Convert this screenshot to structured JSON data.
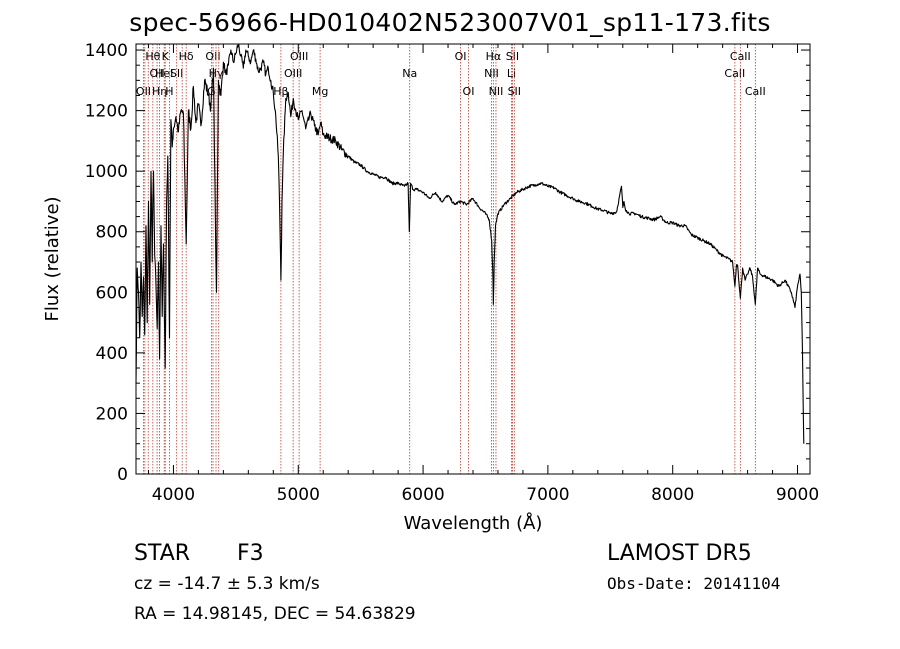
{
  "chart_data": {
    "type": "line",
    "title": "spec-56966-HD010402N523007V01_sp11-173.fits",
    "xlabel": "Wavelength (Å)",
    "ylabel": "Flux (relative)",
    "xlim": [
      3700,
      9100
    ],
    "ylim": [
      0,
      1420
    ],
    "xticks": [
      4000,
      5000,
      6000,
      7000,
      8000,
      9000
    ],
    "yticks": [
      0,
      200,
      400,
      600,
      800,
      1000,
      1200,
      1400
    ],
    "grid": false,
    "series": [
      {
        "color": "#000000",
        "x": [
          3700,
          3710,
          3720,
          3730,
          3740,
          3750,
          3760,
          3770,
          3780,
          3790,
          3800,
          3810,
          3820,
          3830,
          3835,
          3840,
          3850,
          3860,
          3870,
          3880,
          3889,
          3900,
          3910,
          3920,
          3934,
          3945,
          3955,
          3968,
          3980,
          3990,
          4000,
          4020,
          4040,
          4060,
          4080,
          4102,
          4120,
          4140,
          4160,
          4180,
          4200,
          4220,
          4250,
          4280,
          4300,
          4320,
          4340,
          4345,
          4360,
          4380,
          4400,
          4420,
          4440,
          4460,
          4480,
          4500,
          4520,
          4540,
          4560,
          4580,
          4600,
          4620,
          4640,
          4660,
          4680,
          4700,
          4720,
          4740,
          4760,
          4780,
          4800,
          4820,
          4840,
          4850,
          4861,
          4870,
          4880,
          4900,
          4920,
          4940,
          4960,
          4980,
          5000,
          5030,
          5060,
          5100,
          5130,
          5160,
          5180,
          5200,
          5250,
          5300,
          5350,
          5400,
          5450,
          5500,
          5550,
          5600,
          5650,
          5700,
          5750,
          5800,
          5850,
          5880,
          5890,
          5900,
          5920,
          5950,
          6000,
          6050,
          6100,
          6150,
          6200,
          6250,
          6300,
          6350,
          6400,
          6450,
          6500,
          6530,
          6550,
          6560,
          6563,
          6570,
          6580,
          6600,
          6650,
          6700,
          6750,
          6800,
          6850,
          6900,
          6950,
          7000,
          7050,
          7100,
          7150,
          7200,
          7250,
          7300,
          7350,
          7400,
          7450,
          7500,
          7550,
          7590,
          7600,
          7610,
          7620,
          7630,
          7650,
          7700,
          7750,
          7800,
          7850,
          7900,
          7950,
          8000,
          8050,
          8100,
          8150,
          8200,
          8250,
          8300,
          8350,
          8400,
          8450,
          8480,
          8498,
          8510,
          8520,
          8542,
          8560,
          8580,
          8600,
          8620,
          8640,
          8662,
          8680,
          8700,
          8750,
          8800,
          8850,
          8900,
          8950,
          8980,
          9000,
          9020,
          9030,
          9040,
          9050
        ],
        "y": [
          300,
          680,
          600,
          450,
          700,
          520,
          650,
          460,
          820,
          500,
          900,
          560,
          1000,
          700,
          900,
          1000,
          720,
          620,
          480,
          700,
          380,
          820,
          520,
          760,
          350,
          900,
          1050,
          450,
          1170,
          1080,
          1140,
          1180,
          1130,
          1200,
          1190,
          760,
          1200,
          1140,
          1280,
          1160,
          1220,
          1150,
          1300,
          1250,
          1210,
          1340,
          700,
          600,
          1300,
          1250,
          1360,
          1320,
          1350,
          1400,
          1360,
          1390,
          1420,
          1380,
          1340,
          1400,
          1380,
          1360,
          1400,
          1370,
          1330,
          1340,
          1360,
          1320,
          1340,
          1300,
          1260,
          1180,
          1050,
          900,
          640,
          900,
          1060,
          1240,
          1260,
          1180,
          1240,
          1200,
          1170,
          1200,
          1140,
          1190,
          1150,
          1120,
          1160,
          1120,
          1110,
          1100,
          1070,
          1050,
          1030,
          1020,
          1000,
          990,
          980,
          980,
          960,
          960,
          950,
          960,
          800,
          960,
          940,
          940,
          930,
          910,
          930,
          900,
          920,
          890,
          900,
          890,
          910,
          880,
          860,
          840,
          770,
          640,
          560,
          700,
          820,
          860,
          890,
          910,
          930,
          940,
          950,
          955,
          960,
          950,
          945,
          930,
          920,
          910,
          900,
          895,
          885,
          875,
          870,
          860,
          865,
          950,
          880,
          900,
          875,
          870,
          860,
          860,
          850,
          845,
          840,
          850,
          830,
          830,
          820,
          820,
          790,
          780,
          770,
          760,
          740,
          720,
          710,
          700,
          620,
          690,
          690,
          580,
          680,
          640,
          660,
          680,
          650,
          560,
          680,
          660,
          650,
          640,
          620,
          640,
          600,
          550,
          620,
          660,
          600,
          400,
          100
        ]
      }
    ],
    "line_markers": [
      {
        "wavelength": 3760,
        "label": "OII",
        "row": 2
      },
      {
        "wavelength": 3771,
        "label": "",
        "row": 0
      },
      {
        "wavelength": 3798,
        "label": "",
        "row": 0
      },
      {
        "wavelength": 3835,
        "label": "Hθ",
        "row": 0
      },
      {
        "wavelength": 3869,
        "label": "OII",
        "row": 1
      },
      {
        "wavelength": 3889,
        "label": "Hη",
        "row": 2
      },
      {
        "wavelength": 3926,
        "label": "HeI",
        "row": 1
      },
      {
        "wavelength": 3934,
        "label": "K",
        "row": 0
      },
      {
        "wavelength": 3968,
        "label": "H",
        "row": 2
      },
      {
        "wavelength": 4026,
        "label": "SII",
        "row": 1
      },
      {
        "wavelength": 4070,
        "label": "",
        "row": 0
      },
      {
        "wavelength": 4102,
        "label": "Hδ",
        "row": 0
      },
      {
        "wavelength": 4304,
        "label": "G",
        "row": 2
      },
      {
        "wavelength": 4317,
        "label": "OII",
        "row": 0
      },
      {
        "wavelength": 4341,
        "label": "Hγ",
        "row": 1
      },
      {
        "wavelength": 4363,
        "label": "",
        "row": 0
      },
      {
        "wavelength": 4861,
        "label": "Hβ",
        "row": 2
      },
      {
        "wavelength": 4959,
        "label": "OIII",
        "row": 1
      },
      {
        "wavelength": 5007,
        "label": "OIII",
        "row": 0
      },
      {
        "wavelength": 5175,
        "label": "Mg",
        "row": 2
      },
      {
        "wavelength": 5893,
        "label": "Na",
        "row": 1
      },
      {
        "wavelength": 6300,
        "label": "OI",
        "row": 0
      },
      {
        "wavelength": 6364,
        "label": "OI",
        "row": 2
      },
      {
        "wavelength": 6548,
        "label": "NII",
        "row": 1
      },
      {
        "wavelength": 6563,
        "label": "Hα",
        "row": 0
      },
      {
        "wavelength": 6584,
        "label": "NII",
        "row": 2
      },
      {
        "wavelength": 6708,
        "label": "Li",
        "row": 1
      },
      {
        "wavelength": 6716,
        "label": "SII",
        "row": 0
      },
      {
        "wavelength": 6731,
        "label": "SII",
        "row": 2
      },
      {
        "wavelength": 8498,
        "label": "CaII",
        "row": 1
      },
      {
        "wavelength": 8542,
        "label": "CaII",
        "row": 0
      },
      {
        "wavelength": 8662,
        "label": "CaII",
        "row": 2
      }
    ]
  },
  "info": {
    "object_class": "STAR",
    "subclass": "F3",
    "survey": "LAMOST DR5",
    "redshift": "cz = -14.7 ± 5.3 km/s",
    "obs_date": "Obs-Date: 20141104",
    "coords": "RA =  14.98145, DEC =  54.63829"
  },
  "colors": {
    "spectrum": "#000000",
    "marker_line": "#c0392b",
    "axes": "#000000"
  }
}
